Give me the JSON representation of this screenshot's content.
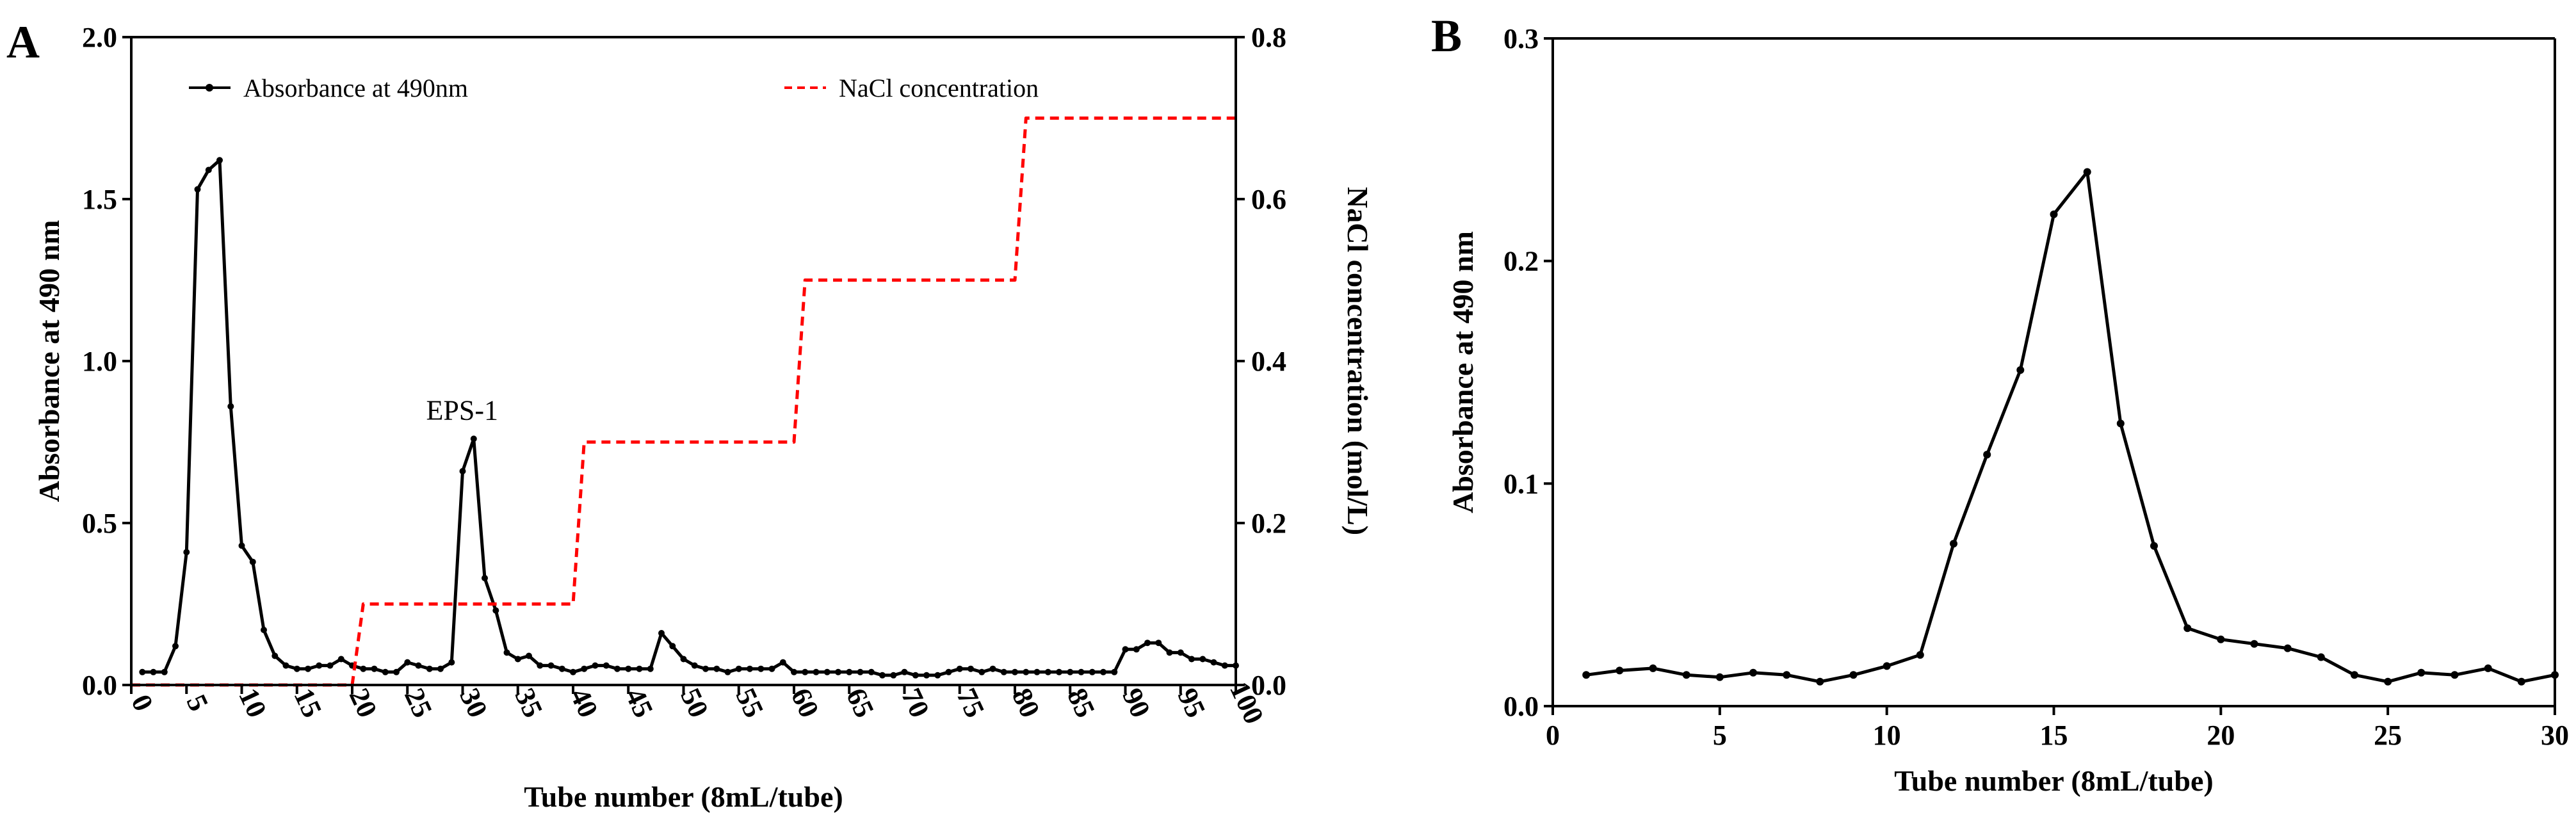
{
  "chart_data": [
    {
      "panel": "A",
      "type": "line",
      "xlabel": "Tube number (8mL/tube)",
      "ylabel": "Absorbance at 490 nm",
      "y2label": "NaCl concentration (mol/L)",
      "xlim": [
        0,
        100
      ],
      "ylim": [
        0,
        2.0
      ],
      "y2lim": [
        0,
        0.8
      ],
      "xticks": [
        "0",
        "5",
        "10",
        "15",
        "20",
        "25",
        "30",
        "35",
        "40",
        "45",
        "50",
        "55",
        "60",
        "65",
        "70",
        "75",
        "80",
        "85",
        "90",
        "95",
        "100"
      ],
      "yticks": [
        "0.0",
        "0.5",
        "1.0",
        "1.5",
        "2.0"
      ],
      "y2ticks": [
        "0.0",
        "0.2",
        "0.4",
        "0.6",
        "0.8"
      ],
      "legend": [
        {
          "label": "Absorbance at 490nm",
          "style": "solid-marker",
          "color": "#000000"
        },
        {
          "label": "NaCl concentration",
          "style": "dashed",
          "color": "#ff0000"
        }
      ],
      "annotations": [
        {
          "text": "EPS-1",
          "x": 31,
          "y": 0.76
        }
      ],
      "series": [
        {
          "name": "Absorbance at 490nm",
          "axis": "left",
          "color": "#000000",
          "x": [
            1,
            2,
            3,
            4,
            5,
            6,
            7,
            8,
            9,
            10,
            11,
            12,
            13,
            14,
            15,
            16,
            17,
            18,
            19,
            20,
            21,
            22,
            23,
            24,
            25,
            26,
            27,
            28,
            29,
            30,
            31,
            32,
            33,
            34,
            35,
            36,
            37,
            38,
            39,
            40,
            41,
            42,
            43,
            44,
            45,
            46,
            47,
            48,
            49,
            50,
            51,
            52,
            53,
            54,
            55,
            56,
            57,
            58,
            59,
            60,
            61,
            62,
            63,
            64,
            65,
            66,
            67,
            68,
            69,
            70,
            71,
            72,
            73,
            74,
            75,
            76,
            77,
            78,
            79,
            80,
            81,
            82,
            83,
            84,
            85,
            86,
            87,
            88,
            89,
            90,
            91,
            92,
            93,
            94,
            95,
            96,
            97,
            98,
            99,
            100
          ],
          "y": [
            0.04,
            0.04,
            0.04,
            0.12,
            0.41,
            1.53,
            1.59,
            1.62,
            0.86,
            0.43,
            0.38,
            0.17,
            0.09,
            0.06,
            0.05,
            0.05,
            0.06,
            0.06,
            0.08,
            0.06,
            0.05,
            0.05,
            0.04,
            0.04,
            0.07,
            0.06,
            0.05,
            0.05,
            0.07,
            0.66,
            0.76,
            0.33,
            0.23,
            0.1,
            0.08,
            0.09,
            0.06,
            0.06,
            0.05,
            0.04,
            0.05,
            0.06,
            0.06,
            0.05,
            0.05,
            0.05,
            0.05,
            0.16,
            0.12,
            0.08,
            0.06,
            0.05,
            0.05,
            0.04,
            0.05,
            0.05,
            0.05,
            0.05,
            0.07,
            0.04,
            0.04,
            0.04,
            0.04,
            0.04,
            0.04,
            0.04,
            0.04,
            0.03,
            0.03,
            0.04,
            0.03,
            0.03,
            0.03,
            0.04,
            0.05,
            0.05,
            0.04,
            0.05,
            0.04,
            0.04,
            0.04,
            0.04,
            0.04,
            0.04,
            0.04,
            0.04,
            0.04,
            0.04,
            0.04,
            0.11,
            0.11,
            0.13,
            0.13,
            0.1,
            0.1,
            0.08,
            0.08,
            0.07,
            0.06,
            0.06
          ]
        },
        {
          "name": "NaCl concentration",
          "axis": "right",
          "color": "#ff0000",
          "x": [
            0,
            20,
            21,
            40,
            41,
            60,
            61,
            80,
            81,
            100
          ],
          "y": [
            0,
            0,
            0.1,
            0.1,
            0.3,
            0.3,
            0.5,
            0.5,
            0.7,
            0.7
          ]
        }
      ]
    },
    {
      "panel": "B",
      "type": "line",
      "xlabel": "Tube number (8mL/tube)",
      "ylabel": "Absorbance at 490 nm",
      "xlim": [
        0,
        30
      ],
      "ylim": [
        0,
        0.3
      ],
      "xticks": [
        "0",
        "5",
        "10",
        "15",
        "20",
        "25",
        "30"
      ],
      "yticks": [
        "0.0",
        "0.1",
        "0.2",
        "0.3"
      ],
      "series": [
        {
          "name": "Absorbance at 490 nm",
          "color": "#000000",
          "x": [
            1,
            2,
            3,
            4,
            5,
            6,
            7,
            8,
            9,
            10,
            11,
            12,
            13,
            14,
            15,
            16,
            17,
            18,
            19,
            20,
            21,
            22,
            23,
            24,
            25,
            26,
            27,
            28,
            29,
            30
          ],
          "y": [
            0.014,
            0.016,
            0.017,
            0.014,
            0.013,
            0.015,
            0.014,
            0.011,
            0.014,
            0.018,
            0.023,
            0.073,
            0.113,
            0.151,
            0.221,
            0.24,
            0.127,
            0.072,
            0.035,
            0.03,
            0.028,
            0.026,
            0.022,
            0.014,
            0.011,
            0.015,
            0.014,
            0.017,
            0.011,
            0.014
          ]
        }
      ]
    }
  ]
}
